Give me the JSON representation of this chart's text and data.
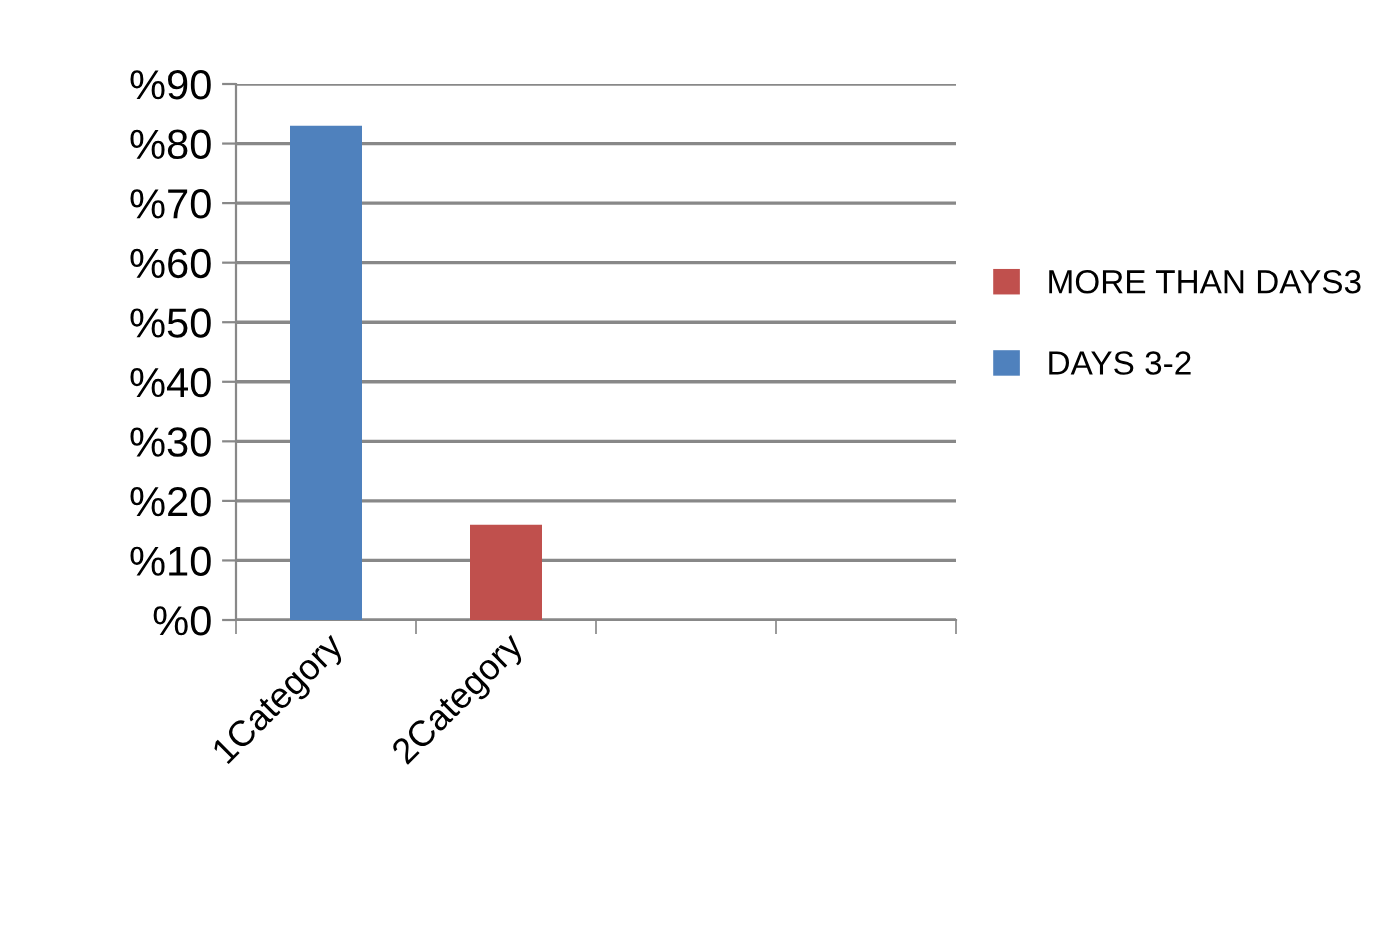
{
  "chart_data": {
    "type": "bar",
    "categories": [
      "1Category",
      "2Category",
      null,
      null
    ],
    "series": [
      {
        "name": "DAYS 3-2",
        "color": "#4f81bd",
        "values": [
          83,
          null,
          null,
          null
        ]
      },
      {
        "name": "MORE THAN DAYS3",
        "color": "#c0504d",
        "values": [
          null,
          16,
          null,
          null
        ]
      }
    ],
    "ylim": [
      0,
      90
    ],
    "yticks": [
      {
        "value": 0,
        "label": "%0"
      },
      {
        "value": 10,
        "label": "%10"
      },
      {
        "value": 20,
        "label": "%20"
      },
      {
        "value": 30,
        "label": "%30"
      },
      {
        "value": 40,
        "label": "%40"
      },
      {
        "value": 50,
        "label": "%50"
      },
      {
        "value": 60,
        "label": "%60"
      },
      {
        "value": 70,
        "label": "%70"
      },
      {
        "value": 80,
        "label": "%80"
      },
      {
        "value": 90,
        "label": "%90"
      }
    ],
    "grid": "y",
    "legend": "right"
  }
}
